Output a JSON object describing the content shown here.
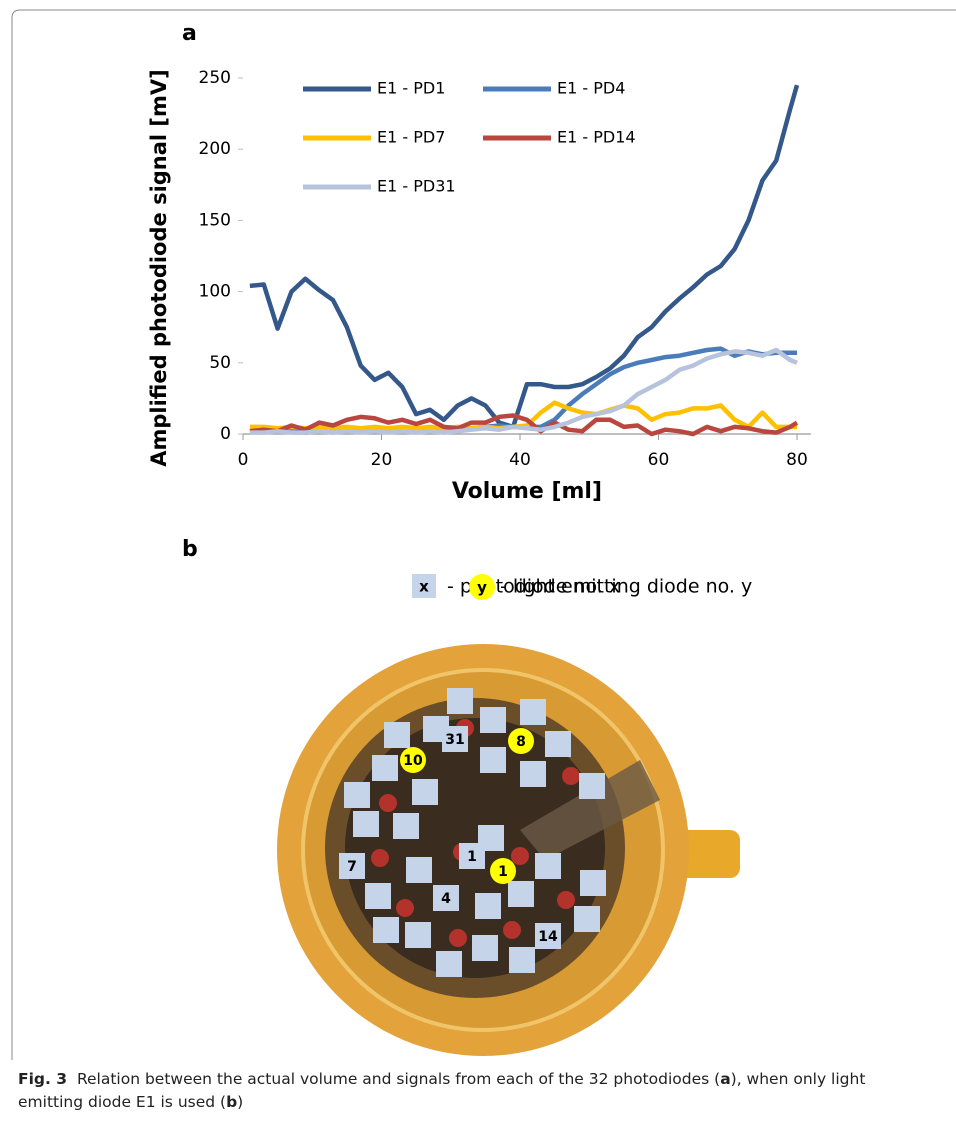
{
  "panels": {
    "a": "a",
    "b": "b"
  },
  "chart_data": {
    "type": "line",
    "xlabel": "Volume [ml]",
    "ylabel": "Amplified photodiode signal [mV]",
    "x": [
      1,
      3,
      5,
      7,
      9,
      11,
      13,
      15,
      17,
      19,
      21,
      23,
      25,
      27,
      29,
      31,
      33,
      35,
      37,
      39,
      41,
      43,
      45,
      47,
      49,
      51,
      53,
      55,
      57,
      59,
      61,
      63,
      65,
      67,
      69,
      71,
      73,
      75,
      77,
      79,
      80
    ],
    "xlim": [
      0,
      82
    ],
    "xticks": [
      0,
      20,
      40,
      60,
      80
    ],
    "ylim": [
      0,
      250
    ],
    "yticks": [
      0,
      50,
      100,
      150,
      200,
      250
    ],
    "legend": "upper left",
    "series": [
      {
        "name": "E1 - PD1",
        "color": "#35588b",
        "values": [
          104,
          105,
          74,
          100,
          109,
          101,
          94,
          75,
          48,
          38,
          43,
          33,
          14,
          17,
          10,
          20,
          25,
          20,
          8,
          5,
          35,
          35,
          33,
          33,
          35,
          40,
          46,
          55,
          68,
          75,
          86,
          95,
          103,
          112,
          118,
          130,
          150,
          178,
          192,
          228,
          245
        ]
      },
      {
        "name": "E1 - PD4",
        "color": "#4a7cbc",
        "values": [
          2,
          2,
          3,
          2,
          1,
          2,
          2,
          3,
          2,
          2,
          3,
          2,
          2,
          3,
          2,
          3,
          4,
          5,
          6,
          5,
          5,
          5,
          10,
          20,
          28,
          35,
          42,
          47,
          50,
          52,
          54,
          55,
          57,
          59,
          60,
          55,
          58,
          56,
          57,
          57,
          57
        ]
      },
      {
        "name": "E1 - PD7",
        "color": "#ffc000",
        "values": [
          5,
          5,
          4,
          5,
          4,
          5,
          4,
          5,
          4,
          5,
          4,
          5,
          4,
          5,
          4,
          5,
          4,
          5,
          4,
          5,
          6,
          15,
          22,
          18,
          15,
          14,
          17,
          20,
          18,
          10,
          14,
          15,
          18,
          18,
          20,
          10,
          5,
          15,
          5,
          5,
          5
        ]
      },
      {
        "name": "E1 - PD14",
        "color": "#b9463f",
        "values": [
          2,
          3,
          2,
          6,
          3,
          8,
          6,
          10,
          12,
          11,
          8,
          10,
          7,
          10,
          5,
          4,
          8,
          8,
          12,
          13,
          10,
          2,
          8,
          3,
          2,
          10,
          10,
          5,
          6,
          0,
          3,
          2,
          0,
          5,
          2,
          5,
          4,
          2,
          1,
          5,
          8
        ]
      },
      {
        "name": "E1 - PD31",
        "color": "#b7c3dc",
        "values": [
          1,
          1,
          2,
          1,
          1,
          2,
          1,
          2,
          1,
          2,
          1,
          2,
          1,
          2,
          1,
          2,
          3,
          4,
          3,
          5,
          4,
          3,
          5,
          8,
          12,
          14,
          16,
          20,
          28,
          33,
          38,
          45,
          48,
          53,
          56,
          58,
          57,
          55,
          59,
          52,
          50
        ]
      }
    ]
  },
  "diagram_legend": {
    "pd_symbol": "x",
    "pd_text": "- photodiode no. x",
    "led_symbol": "y",
    "led_text": "- light emitting diode no. y"
  },
  "photodiode_labels": [
    "31",
    "1",
    "7",
    "4",
    "14"
  ],
  "led_labels": [
    "10",
    "8",
    "1"
  ],
  "caption": {
    "label": "Fig. 3",
    "parts": [
      "Relation between the actual volume and signals from each of the 32 photodiodes (",
      "a",
      "), when only light emitting diode E1 is used (",
      "b",
      ")"
    ]
  }
}
